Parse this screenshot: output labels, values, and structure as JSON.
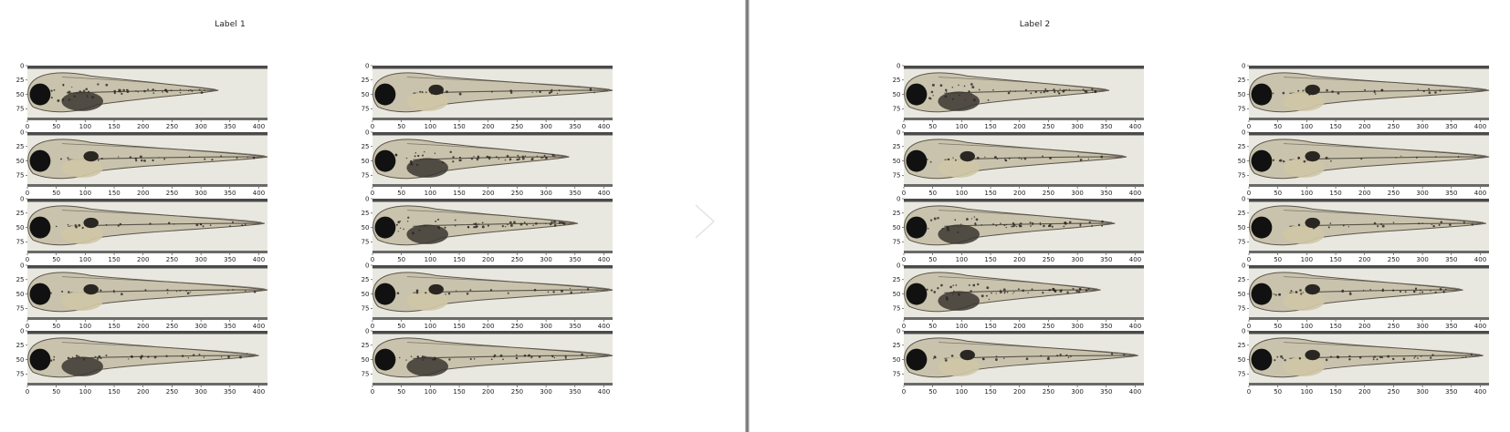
{
  "panels": [
    {
      "title": "Label 1",
      "columns": [
        {
          "images": [
            {
              "fish_end": 330,
              "yolk": "dark",
              "pigment": "heavy"
            },
            {
              "fish_end": 415,
              "yolk": "clear",
              "pigment": "light"
            },
            {
              "fish_end": 410,
              "yolk": "clear",
              "pigment": "light"
            },
            {
              "fish_end": 415,
              "yolk": "clear",
              "pigment": "light"
            },
            {
              "fish_end": 400,
              "yolk": "dark",
              "pigment": "medium"
            }
          ]
        },
        {
          "images": [
            {
              "fish_end": 415,
              "yolk": "clear",
              "pigment": "light"
            },
            {
              "fish_end": 340,
              "yolk": "dark",
              "pigment": "heavy"
            },
            {
              "fish_end": 355,
              "yolk": "dark",
              "pigment": "heavy"
            },
            {
              "fish_end": 415,
              "yolk": "clear",
              "pigment": "light"
            },
            {
              "fish_end": 415,
              "yolk": "dark",
              "pigment": "medium"
            }
          ]
        }
      ]
    },
    {
      "title": "Label 2",
      "columns": [
        {
          "images": [
            {
              "fish_end": 355,
              "yolk": "dark",
              "pigment": "heavy"
            },
            {
              "fish_end": 385,
              "yolk": "clear",
              "pigment": "light"
            },
            {
              "fish_end": 365,
              "yolk": "dark",
              "pigment": "heavy"
            },
            {
              "fish_end": 340,
              "yolk": "dark",
              "pigment": "heavy"
            },
            {
              "fish_end": 405,
              "yolk": "clear",
              "pigment": "light"
            }
          ]
        },
        {
          "images": [
            {
              "fish_end": 415,
              "yolk": "clear",
              "pigment": "light"
            },
            {
              "fish_end": 415,
              "yolk": "clear",
              "pigment": "light"
            },
            {
              "fish_end": 410,
              "yolk": "clear",
              "pigment": "light"
            },
            {
              "fish_end": 370,
              "yolk": "clear",
              "pigment": "medium"
            },
            {
              "fish_end": 405,
              "yolk": "clear",
              "pigment": "medium"
            }
          ]
        }
      ]
    }
  ],
  "axes": {
    "x_ticks": [
      "0",
      "50",
      "100",
      "150",
      "200",
      "250",
      "300",
      "350",
      "400"
    ],
    "y_ticks": [
      "0",
      "25",
      "50",
      "75"
    ],
    "x_range": [
      0,
      415
    ],
    "y_range": [
      0,
      95
    ]
  },
  "colors": {
    "background": "#ffffff",
    "image_bg": "#e9e8e0",
    "fish_body": "#c9c3ad",
    "fish_edge": "#5a544a",
    "eye": "#111111",
    "pigment": "#2a2520",
    "yolk_dark": "#3b3630",
    "yolk_clear": "#cfc7a6",
    "bar": "#4a4a4a"
  },
  "icons": {
    "nav": "chevron-right-icon"
  }
}
